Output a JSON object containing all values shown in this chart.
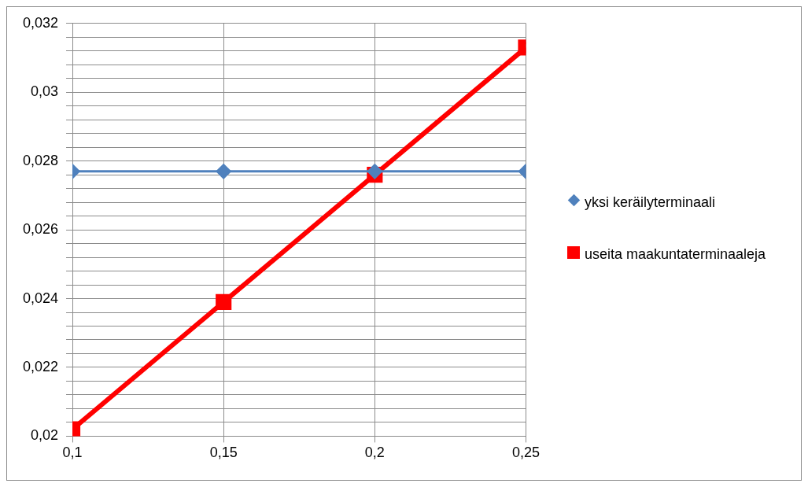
{
  "chart_data": {
    "type": "line",
    "x": [
      0.1,
      0.15,
      0.2,
      0.25
    ],
    "series": [
      {
        "name": "yksi keräilyterminaali",
        "color": "#4f81bd",
        "marker": "diamond",
        "values": [
          0.0277,
          0.0277,
          0.0277,
          0.0277
        ]
      },
      {
        "name": "useita maakuntaterminaaleja",
        "color": "#ff0000",
        "marker": "square",
        "values": [
          0.0202,
          0.0239,
          0.0276,
          0.0313
        ]
      }
    ],
    "xlim": [
      0.1,
      0.25
    ],
    "xticks": [
      {
        "value": 0.1,
        "label": "0,1"
      },
      {
        "value": 0.15,
        "label": "0,15"
      },
      {
        "value": 0.2,
        "label": "0,2"
      },
      {
        "value": 0.25,
        "label": "0,25"
      }
    ],
    "ylim": [
      0.02,
      0.032
    ],
    "yticks": [
      {
        "value": 0.02,
        "label": "0,02"
      },
      {
        "value": 0.0204,
        "label": null
      },
      {
        "value": 0.0208,
        "label": null
      },
      {
        "value": 0.0212,
        "label": null
      },
      {
        "value": 0.0216,
        "label": null
      },
      {
        "value": 0.022,
        "label": "0,022"
      },
      {
        "value": 0.0224,
        "label": null
      },
      {
        "value": 0.0228,
        "label": null
      },
      {
        "value": 0.0232,
        "label": null
      },
      {
        "value": 0.0236,
        "label": null
      },
      {
        "value": 0.024,
        "label": "0,024"
      },
      {
        "value": 0.0244,
        "label": null
      },
      {
        "value": 0.0248,
        "label": null
      },
      {
        "value": 0.0252,
        "label": null
      },
      {
        "value": 0.0256,
        "label": null
      },
      {
        "value": 0.026,
        "label": "0,026"
      },
      {
        "value": 0.0264,
        "label": null
      },
      {
        "value": 0.0268,
        "label": null
      },
      {
        "value": 0.0272,
        "label": null
      },
      {
        "value": 0.0276,
        "label": null
      },
      {
        "value": 0.028,
        "label": "0,028"
      },
      {
        "value": 0.0284,
        "label": null
      },
      {
        "value": 0.0288,
        "label": null
      },
      {
        "value": 0.0292,
        "label": null
      },
      {
        "value": 0.0296,
        "label": null
      },
      {
        "value": 0.03,
        "label": "0,03"
      },
      {
        "value": 0.0304,
        "label": null
      },
      {
        "value": 0.0308,
        "label": null
      },
      {
        "value": 0.0312,
        "label": null
      },
      {
        "value": 0.0316,
        "label": null
      },
      {
        "value": 0.032,
        "label": "0,032"
      }
    ],
    "grid": true,
    "legend": "right"
  }
}
